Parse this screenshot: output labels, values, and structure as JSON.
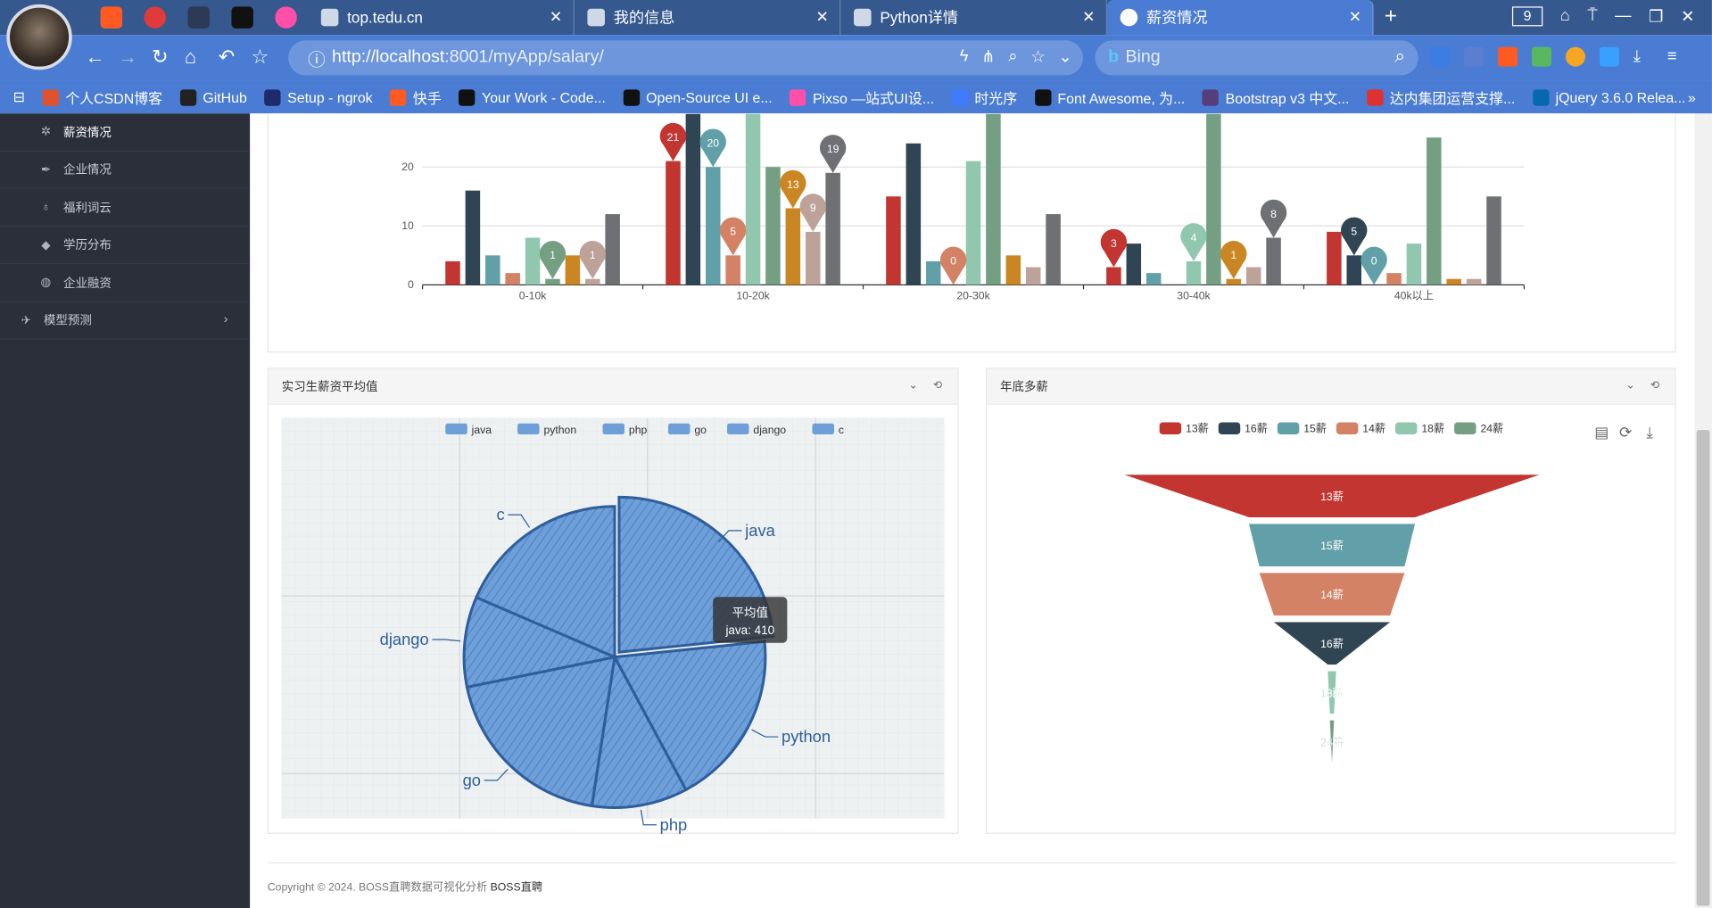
{
  "browser": {
    "tabs": [
      {
        "label": "top.tedu.cn"
      },
      {
        "label": "我的信息"
      },
      {
        "label": "Python详情"
      },
      {
        "label": "薪资情况"
      }
    ],
    "tab_count": "9",
    "address": {
      "scheme_host": "http://localhost",
      "rest": ":8001/myApp/salary/"
    },
    "search_placeholder": "Bing",
    "bookmarks": [
      {
        "label": "个人CSDN博客",
        "color": "#e0512e"
      },
      {
        "label": "GitHub",
        "color": "#222222"
      },
      {
        "label": "Setup - ngrok",
        "color": "#1f2a6b"
      },
      {
        "label": "快手",
        "color": "#ff5a22"
      },
      {
        "label": "Your Work - Code...",
        "color": "#111111"
      },
      {
        "label": "Open-Source UI e...",
        "color": "#111111"
      },
      {
        "label": "Pixso —站式UI设...",
        "color": "#ff4fa8"
      },
      {
        "label": "时光序",
        "color": "#3f7bff"
      },
      {
        "label": "Font Awesome, 为...",
        "color": "#111111"
      },
      {
        "label": "Bootstrap v3 中文...",
        "color": "#563d7c"
      },
      {
        "label": "达内集团运营支撑...",
        "color": "#e03030"
      },
      {
        "label": "jQuery 3.6.0 Relea...",
        "color": "#0769ad"
      }
    ]
  },
  "sidebar": {
    "items": [
      {
        "label": "薪资情况",
        "icon": "gear-icon"
      },
      {
        "label": "企业情况",
        "icon": "feather-icon"
      },
      {
        "label": "福利词云",
        "icon": "bulb-icon"
      },
      {
        "label": "学历分布",
        "icon": "graduation-cap-icon"
      },
      {
        "label": "企业融资",
        "icon": "globe-icon"
      }
    ],
    "group": {
      "label": "模型预测",
      "icon": "plane-icon"
    }
  },
  "panels": {
    "intern": {
      "title": "实习生薪资平均值"
    },
    "bonus": {
      "title": "年底多薪"
    }
  },
  "footer": {
    "copyright": "Copyright © 2024. BOSS直聘数据可视化分析",
    "brand": "BOSS直聘"
  },
  "chart_data": [
    {
      "type": "bar",
      "categories": [
        "0-10k",
        "10-20k",
        "20-30k",
        "30-40k",
        "40k以上"
      ],
      "y_ticks": [
        0,
        10,
        20
      ],
      "ylim": [
        0,
        29
      ],
      "colors": [
        "#c23531",
        "#2f4554",
        "#61a0a8",
        "#d48265",
        "#91c7ae",
        "#749f83",
        "#ca8622",
        "#bda29a",
        "#6e7074"
      ],
      "series": [
        {
          "values": [
            4,
            21,
            15,
            3,
            9
          ]
        },
        {
          "values": [
            16,
            29,
            24,
            7,
            5
          ]
        },
        {
          "values": [
            5,
            20,
            4,
            2,
            0
          ]
        },
        {
          "values": [
            2,
            5,
            0,
            0,
            2
          ]
        },
        {
          "values": [
            8,
            29,
            21,
            4,
            7
          ]
        },
        {
          "values": [
            1,
            20,
            29,
            29,
            25
          ]
        },
        {
          "values": [
            5,
            13,
            5,
            1,
            1
          ]
        },
        {
          "values": [
            1,
            9,
            3,
            3,
            1
          ]
        },
        {
          "values": [
            12,
            19,
            12,
            8,
            15
          ]
        }
      ],
      "markers": [
        {
          "category": 0,
          "series": 5,
          "label": "1"
        },
        {
          "category": 0,
          "series": 7,
          "label": "1"
        },
        {
          "category": 1,
          "series": 0,
          "label": "21"
        },
        {
          "category": 1,
          "series": 2,
          "label": "20"
        },
        {
          "category": 1,
          "series": 3,
          "label": "5"
        },
        {
          "category": 1,
          "series": 6,
          "label": "13"
        },
        {
          "category": 1,
          "series": 7,
          "label": "9"
        },
        {
          "category": 1,
          "series": 8,
          "label": "19"
        },
        {
          "category": 2,
          "series": 3,
          "label": "0"
        },
        {
          "category": 3,
          "series": 0,
          "label": "3"
        },
        {
          "category": 3,
          "series": 4,
          "label": "4"
        },
        {
          "category": 3,
          "series": 6,
          "label": "1"
        },
        {
          "category": 3,
          "series": 8,
          "label": "8"
        },
        {
          "category": 4,
          "series": 1,
          "label": "5"
        },
        {
          "category": 4,
          "series": 2,
          "label": "0"
        }
      ]
    },
    {
      "type": "pie",
      "legend": [
        "java",
        "python",
        "php",
        "go",
        "django",
        "c"
      ],
      "slices": [
        {
          "name": "java",
          "value": 410
        },
        {
          "name": "python",
          "value": 330
        },
        {
          "name": "php",
          "value": 180
        },
        {
          "name": "go",
          "value": 340
        },
        {
          "name": "django",
          "value": 170
        },
        {
          "name": "c",
          "value": 325
        }
      ],
      "tooltip": {
        "title": "平均值",
        "line": "java: 410"
      },
      "fill": "#6f9fd8",
      "stroke": "#2e5e9b"
    },
    {
      "type": "funnel",
      "legend": [
        {
          "name": "13薪",
          "color": "#c23531"
        },
        {
          "name": "16薪",
          "color": "#2f4554"
        },
        {
          "name": "15薪",
          "color": "#61a0a8"
        },
        {
          "name": "14薪",
          "color": "#d48265"
        },
        {
          "name": "18薪",
          "color": "#91c7ae"
        },
        {
          "name": "24薪",
          "color": "#749f83"
        }
      ],
      "stages": [
        {
          "name": "13薪",
          "value": 100,
          "color": "#c23531"
        },
        {
          "name": "15薪",
          "value": 40,
          "color": "#61a0a8"
        },
        {
          "name": "14薪",
          "value": 35,
          "color": "#d48265"
        },
        {
          "name": "16薪",
          "value": 28,
          "color": "#2f4554"
        },
        {
          "name": "18薪",
          "value": 2,
          "color": "#91c7ae"
        },
        {
          "name": "24薪",
          "value": 1,
          "color": "#749f83"
        }
      ],
      "toolbox": [
        "data-view-icon",
        "refresh-icon",
        "download-icon"
      ]
    }
  ]
}
